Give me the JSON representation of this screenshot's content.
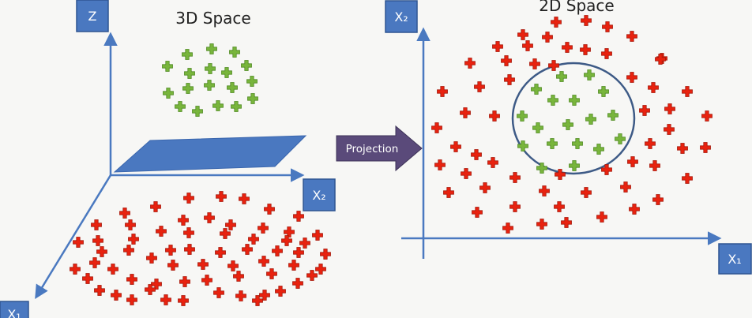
{
  "left_panel": {
    "title": "3D Space",
    "axis_labels": {
      "z": "Z",
      "x2": "X₂",
      "x1": "X₁"
    }
  },
  "arrow": {
    "label": "Projection"
  },
  "right_panel": {
    "title": "2D Space",
    "axis_labels": {
      "x2": "X₂",
      "x1": "X₁"
    }
  },
  "colors": {
    "background": "#f7f7f5",
    "axis": "#4a79c0",
    "label_box_fill": "#4a78c0",
    "label_box_stroke": "#2f5592",
    "plane": "#4a78c0",
    "arrow_fill": "#5a4a7a",
    "red_cross": "#e8220f",
    "green_cross": "#78b53c",
    "boundary": "#3d5a86"
  },
  "markers": {
    "red_symbol": "red plus",
    "green_symbol": "green plus"
  }
}
